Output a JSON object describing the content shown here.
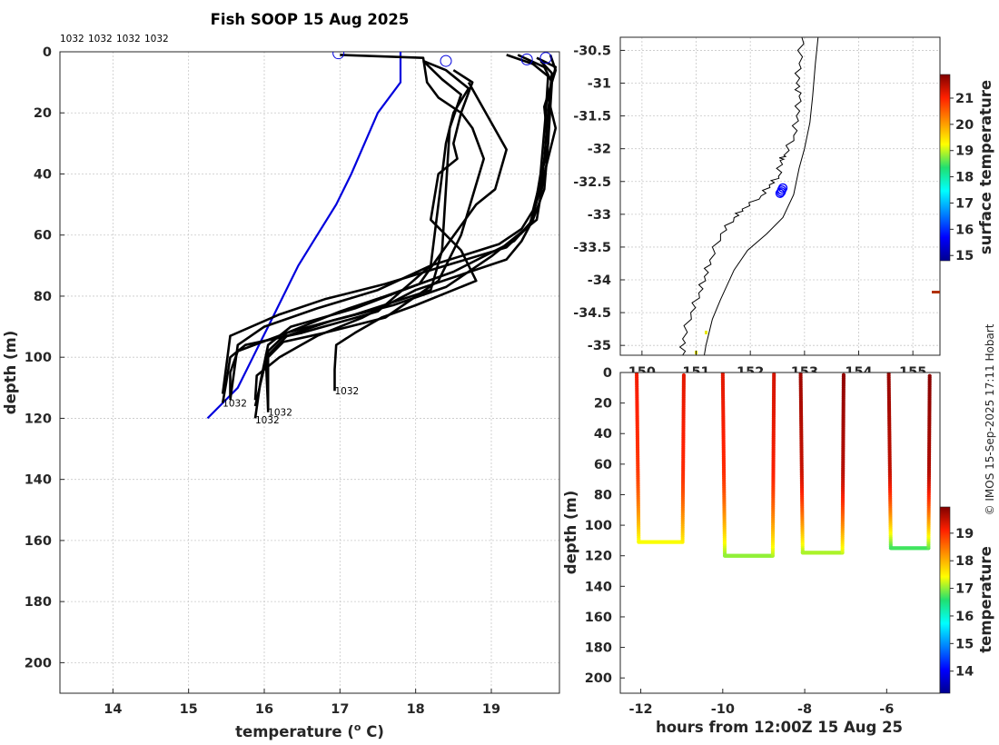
{
  "chart_data": [
    {
      "type": "line",
      "panel": "profiles",
      "title": "Fish SOOP 15 Aug 2025",
      "xlabel": "temperature (",
      "xlabel_sup": "o",
      "xlabel_tail": " C)",
      "ylabel": "depth (m)",
      "xlim": [
        13.3,
        19.9
      ],
      "ylim": [
        210,
        0
      ],
      "xticks": [
        14,
        15,
        16,
        17,
        18,
        19
      ],
      "yticks": [
        0,
        20,
        40,
        60,
        80,
        100,
        120,
        140,
        160,
        180,
        200
      ],
      "header_labels": [
        "1032",
        "1032",
        "1032",
        "1032"
      ],
      "end_labels": [
        {
          "text": "1032",
          "temp": 16.93,
          "depth": 111
        },
        {
          "text": "1032",
          "temp": 15.45,
          "depth": 115
        },
        {
          "text": "1032",
          "temp": 16.05,
          "depth": 118
        },
        {
          "text": "1032",
          "temp": 15.88,
          "depth": 120.5
        }
      ],
      "climatology_color": "#0000dd",
      "profile_color": "#000000",
      "climatology": {
        "temp": [
          17.8,
          17.8,
          17.5,
          17.15,
          16.95,
          16.7,
          16.45,
          16.25,
          16.05,
          15.95,
          15.85,
          15.65,
          15.45,
          15.25
        ],
        "depth": [
          0,
          10,
          20,
          40,
          50,
          60,
          70,
          80,
          90,
          95,
          100,
          110,
          115,
          120
        ]
      },
      "surface_markers": [
        {
          "temp": 16.98,
          "depth": 0.5
        },
        {
          "temp": 18.4,
          "depth": 3
        },
        {
          "temp": 19.47,
          "depth": 2.5
        },
        {
          "temp": 19.72,
          "depth": 2
        }
      ],
      "series": [
        {
          "name": "p1",
          "temp": [
            17.0,
            18.1,
            18.15,
            18.3,
            18.6,
            18.5,
            18.55,
            18.3,
            18.2,
            18.6,
            18.8,
            18.0,
            17.55,
            17.2,
            16.95,
            16.93,
            16.93
          ],
          "depth": [
            1,
            2,
            10,
            15,
            20,
            30,
            35,
            40,
            55,
            65,
            75,
            83,
            87,
            92,
            96,
            104,
            111
          ]
        },
        {
          "name": "p2",
          "temp": [
            18.1,
            18.4,
            18.7,
            18.5,
            18.4,
            18.3,
            18.2,
            17.5,
            16.5,
            15.75,
            15.55,
            15.5,
            15.45
          ],
          "depth": [
            3,
            6,
            12,
            20,
            30,
            50,
            70,
            85,
            92,
            96,
            100,
            108,
            115
          ]
        },
        {
          "name": "p3",
          "temp": [
            18.1,
            18.35,
            18.6,
            18.45,
            18.4,
            18.35,
            18.2,
            17.2,
            16.3,
            15.65,
            15.55,
            15.55
          ],
          "depth": [
            3,
            9,
            14,
            25,
            45,
            65,
            78,
            86,
            92,
            98,
            105,
            113
          ]
        },
        {
          "name": "p4",
          "temp": [
            18.5,
            18.75,
            18.6,
            18.75,
            18.9,
            18.6,
            18.3,
            17.6,
            16.8,
            16.25,
            16.05,
            16.05
          ],
          "depth": [
            6,
            10,
            20,
            25,
            35,
            60,
            75,
            87,
            92,
            95,
            100,
            118
          ]
        },
        {
          "name": "p5",
          "temp": [
            18.7,
            19.2,
            19.05,
            18.8,
            18.45,
            18.05,
            17.2,
            16.35,
            16.05,
            15.95,
            15.88
          ],
          "depth": [
            10,
            32,
            45,
            50,
            62,
            76,
            84,
            90,
            96,
            108,
            120
          ]
        },
        {
          "name": "p6",
          "temp": [
            19.2,
            19.55,
            19.75,
            19.72,
            19.65,
            19.55,
            19.3,
            18.5,
            17.6,
            17.0,
            16.3,
            16.05,
            15.88
          ],
          "depth": [
            1,
            4,
            8,
            20,
            40,
            55,
            62,
            72,
            80,
            85,
            92,
            98,
            116
          ]
        },
        {
          "name": "p7",
          "temp": [
            19.35,
            19.7,
            19.8,
            19.75,
            19.7,
            19.55,
            19.4,
            19.2,
            18.0,
            17.3,
            16.7,
            16.2,
            15.9,
            15.88
          ],
          "depth": [
            1,
            5,
            10,
            30,
            45,
            55,
            62,
            68,
            78,
            87,
            93,
            100,
            106,
            114
          ]
        },
        {
          "name": "p8",
          "temp": [
            19.6,
            19.85,
            19.75,
            19.85,
            19.7,
            19.6,
            19.0,
            18.4,
            17.7,
            16.9,
            16.3,
            16.02,
            16.05
          ],
          "depth": [
            2,
            5,
            15,
            25,
            40,
            55,
            67,
            77,
            83,
            88,
            93,
            100,
            117
          ]
        },
        {
          "name": "p9",
          "temp": [
            19.65,
            19.8,
            19.75,
            19.7,
            19.65,
            19.5,
            19.2,
            18.4,
            17.6,
            16.8,
            16.2,
            15.55,
            15.45
          ],
          "depth": [
            3,
            7,
            20,
            35,
            45,
            57,
            64,
            70,
            76,
            81,
            86,
            93,
            112
          ]
        },
        {
          "name": "p10",
          "temp": [
            19.78,
            19.85,
            19.7,
            19.75,
            19.65,
            19.55,
            19.4,
            19.1,
            18.2,
            17.5,
            16.7,
            16.0,
            15.65,
            15.55
          ],
          "depth": [
            1,
            6,
            18,
            30,
            42,
            52,
            58,
            63,
            70,
            78,
            84,
            90,
            96,
            114
          ]
        }
      ]
    },
    {
      "type": "scatter",
      "panel": "map",
      "colorbar_label": "surface temperature",
      "xlim": [
        149.6,
        155.5
      ],
      "ylim": [
        -35.15,
        -30.3
      ],
      "xticks": [
        150,
        151,
        152,
        153,
        154,
        155
      ],
      "xtick_labels": [
        "150",
        "151",
        "152",
        "153",
        "154",
        "155"
      ],
      "yticks": [
        -30.5,
        -31,
        -31.5,
        -32,
        -32.5,
        -33,
        -33.5,
        -34,
        -34.5,
        -35
      ],
      "ytick_labels": [
        "-30.5",
        "-31",
        "-31.5",
        "-32",
        "-32.5",
        "-33",
        "-33.5",
        "-34",
        "-34.5",
        "-35"
      ],
      "clim": [
        14.8,
        21.9
      ],
      "cbar_ticks": [
        15,
        16,
        17,
        18,
        19,
        20,
        21
      ],
      "positions": [
        {
          "lon": 152.55,
          "lat": -32.68
        },
        {
          "lon": 152.58,
          "lat": -32.63
        },
        {
          "lon": 152.6,
          "lat": -32.6
        },
        {
          "lon": 152.57,
          "lat": -32.66
        }
      ],
      "coastline": [
        [
          152.95,
          -30.3
        ],
        [
          152.9,
          -30.7
        ],
        [
          152.85,
          -31.0
        ],
        [
          152.9,
          -31.2
        ],
        [
          152.85,
          -31.5
        ],
        [
          152.8,
          -31.8
        ],
        [
          152.62,
          -32.1
        ],
        [
          152.55,
          -32.18
        ],
        [
          152.52,
          -32.42
        ],
        [
          152.35,
          -32.55
        ],
        [
          152.2,
          -32.72
        ],
        [
          151.85,
          -32.92
        ],
        [
          151.7,
          -33.05
        ],
        [
          151.45,
          -33.3
        ],
        [
          151.25,
          -33.7
        ],
        [
          151.15,
          -33.95
        ],
        [
          151.05,
          -34.2
        ],
        [
          150.9,
          -34.5
        ],
        [
          150.75,
          -34.9
        ],
        [
          150.75,
          -35.15
        ]
      ],
      "shelf_edge": [
        [
          153.25,
          -30.3
        ],
        [
          153.2,
          -30.7
        ],
        [
          153.15,
          -31.2
        ],
        [
          153.1,
          -31.6
        ],
        [
          153.0,
          -32.0
        ],
        [
          152.9,
          -32.3
        ],
        [
          152.8,
          -32.7
        ],
        [
          152.6,
          -33.05
        ],
        [
          152.3,
          -33.3
        ],
        [
          151.95,
          -33.55
        ],
        [
          151.7,
          -33.85
        ],
        [
          151.45,
          -34.3
        ],
        [
          151.3,
          -34.6
        ],
        [
          151.18,
          -35.0
        ],
        [
          151.15,
          -35.15
        ]
      ]
    },
    {
      "type": "scatter",
      "panel": "section",
      "xlabel": "hours from 12:00Z 15 Aug 25",
      "ylabel": "depth (m)",
      "colorbar_label": "temperature",
      "xlim": [
        -12.5,
        -4.7
      ],
      "ylim": [
        210,
        0
      ],
      "xticks": [
        -12,
        -10,
        -8,
        -6
      ],
      "xtick_labels": [
        "-12",
        "-10",
        "-8",
        "-6"
      ],
      "yticks": [
        0,
        20,
        40,
        60,
        80,
        100,
        120,
        140,
        160,
        180,
        200
      ],
      "clim": [
        13.2,
        19.95
      ],
      "cbar_ticks": [
        14,
        15,
        16,
        17,
        18,
        19
      ],
      "casts": [
        {
          "t_down": -12.1,
          "t_up": -10.95,
          "bottom": 111,
          "surface_temp": 19.2,
          "bottom_temp": 17.4
        },
        {
          "t_down": -10.0,
          "t_up": -8.75,
          "bottom": 120,
          "surface_temp": 19.3,
          "bottom_temp": 17.0
        },
        {
          "t_down": -8.1,
          "t_up": -7.05,
          "bottom": 118,
          "surface_temp": 19.75,
          "bottom_temp": 17.1
        },
        {
          "t_down": -5.95,
          "t_up": -4.95,
          "bottom": 115,
          "surface_temp": 19.8,
          "bottom_temp": 16.7
        }
      ]
    }
  ],
  "credit": "© IMOS 15-Sep-2025 17:11 Hobart"
}
